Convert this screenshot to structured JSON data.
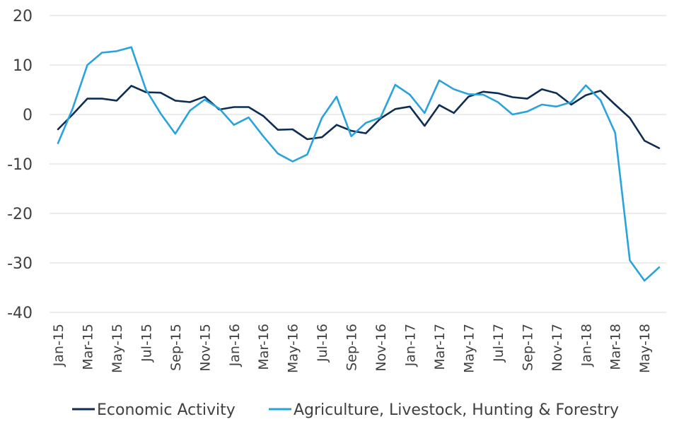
{
  "chart_data": {
    "type": "line",
    "title": "",
    "xlabel": "",
    "ylabel": "",
    "ylim": [
      -40,
      20
    ],
    "y_ticks": [
      20,
      10,
      0,
      -10,
      -20,
      -30,
      -40
    ],
    "grid": "horizontal",
    "legend_position": "bottom",
    "x": [
      "Jan-15",
      "Feb-15",
      "Mar-15",
      "Apr-15",
      "May-15",
      "Jun-15",
      "Jul-15",
      "Aug-15",
      "Sep-15",
      "Oct-15",
      "Nov-15",
      "Dec-15",
      "Jan-16",
      "Feb-16",
      "Mar-16",
      "Apr-16",
      "May-16",
      "Jun-16",
      "Jul-16",
      "Aug-16",
      "Sep-16",
      "Oct-16",
      "Nov-16",
      "Dec-16",
      "Jan-17",
      "Feb-17",
      "Mar-17",
      "Apr-17",
      "May-17",
      "Jun-17",
      "Jul-17",
      "Aug-17",
      "Sep-17",
      "Oct-17",
      "Nov-17",
      "Dec-17",
      "Jan-18",
      "Feb-18",
      "Mar-18",
      "Apr-18",
      "May-18",
      "Jun-18"
    ],
    "x_tick_labels": [
      "Jan-15",
      "Mar-15",
      "May-15",
      "Jul-15",
      "Sep-15",
      "Nov-15",
      "Jan-16",
      "Mar-16",
      "May-16",
      "Jul-16",
      "Sep-16",
      "Nov-16",
      "Jan-17",
      "Mar-17",
      "May-17",
      "Jul-17",
      "Sep-17",
      "Nov-17",
      "Jan-18",
      "Mar-18",
      "May-18"
    ],
    "series": [
      {
        "name": "Economic Activity",
        "color": "#0d2d52",
        "values": [
          -3.0,
          0.0,
          3.2,
          3.2,
          2.8,
          5.8,
          4.5,
          4.4,
          2.8,
          2.5,
          3.6,
          1.0,
          1.5,
          1.5,
          -0.3,
          -3.1,
          -3.0,
          -5.0,
          -4.6,
          -2.1,
          -3.3,
          -3.8,
          -0.8,
          1.1,
          1.6,
          -2.3,
          1.9,
          0.3,
          3.6,
          4.6,
          4.3,
          3.5,
          3.2,
          5.1,
          4.3,
          2.0,
          3.9,
          4.8,
          2.0,
          -0.7,
          -5.3,
          -6.8
        ]
      },
      {
        "name": "Agriculture, Livestock, Hunting & Forestry",
        "color": "#29a3db",
        "values": [
          -5.8,
          1.2,
          10.0,
          12.5,
          12.8,
          13.6,
          5.0,
          0.2,
          -3.9,
          0.8,
          3.0,
          1.2,
          -2.1,
          -0.6,
          -4.4,
          -7.9,
          -9.5,
          -8.1,
          -0.7,
          3.6,
          -4.4,
          -1.7,
          -0.6,
          6.0,
          4.0,
          0.3,
          6.9,
          5.1,
          4.1,
          4.0,
          2.5,
          0.0,
          0.6,
          2.0,
          1.6,
          2.5,
          5.9,
          2.9,
          -3.7,
          -29.5,
          -33.6,
          -30.9
        ]
      }
    ]
  }
}
